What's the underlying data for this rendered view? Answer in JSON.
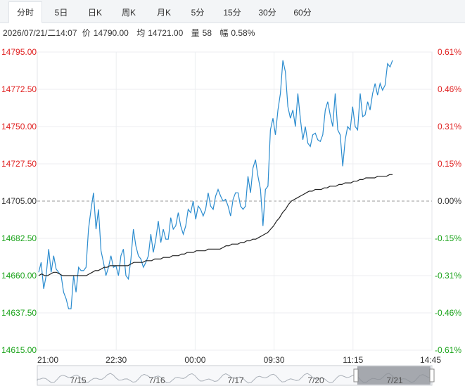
{
  "tabs": [
    {
      "label": "分时",
      "active": true
    },
    {
      "label": "5日",
      "active": false
    },
    {
      "label": "日K",
      "active": false
    },
    {
      "label": "周K",
      "active": false
    },
    {
      "label": "月K",
      "active": false
    },
    {
      "label": "5分",
      "active": false
    },
    {
      "label": "15分",
      "active": false
    },
    {
      "label": "30分",
      "active": false
    },
    {
      "label": "60分",
      "active": false
    }
  ],
  "info": {
    "datetime": "2026/07/21/二14:07",
    "price_label": "价",
    "price": "14790.00",
    "avg_label": "均",
    "avg": "14721.00",
    "vol_label": "量",
    "vol": "58",
    "chg_label": "幅",
    "chg": "0.58%"
  },
  "colors": {
    "up": "#e02020",
    "down": "#1aa31a",
    "neutral": "#333333",
    "price_line": "#2b8ccf",
    "avg_line": "#222222"
  },
  "chart_data": {
    "type": "line",
    "prev_close": 14705.0,
    "ylim": [
      14615,
      14795
    ],
    "y_ticks_left": [
      "14795.00",
      "14772.50",
      "14750.00",
      "14727.50",
      "14705.00",
      "14682.50",
      "14660.00",
      "14637.50",
      "14615.00"
    ],
    "y_ticks_right": [
      "0.61%",
      "0.46%",
      "0.31%",
      "0.15%",
      "0.00%",
      "-0.15%",
      "-0.31%",
      "-0.46%",
      "-0.61%"
    ],
    "x_ticks": [
      "21:00",
      "22:30",
      "00:00",
      "09:30",
      "11:15",
      "14:45"
    ],
    "navigator_dates": [
      "7/15",
      "7/16",
      "7/17",
      "7/20",
      "7/21"
    ],
    "series": [
      {
        "values": [
          14662,
          14668,
          14652,
          14660,
          14676,
          14662,
          14672,
          14664,
          14662,
          14660,
          14650,
          14646,
          14640,
          14640,
          14660,
          14650,
          14665,
          14663,
          14663,
          14665,
          14688,
          14700,
          14710,
          14688,
          14700,
          14675,
          14668,
          14660,
          14665,
          14672,
          14665,
          14666,
          14660,
          14672,
          14676,
          14660,
          14658,
          14670,
          14688,
          14678,
          14672,
          14670,
          14665,
          14668,
          14672,
          14685,
          14674,
          14682,
          14693,
          14680,
          14688,
          14682,
          14682,
          14695,
          14688,
          14690,
          14698,
          14690,
          14685,
          14690,
          14700,
          14698,
          14705,
          14694,
          14702,
          14700,
          14696,
          14700,
          14710,
          14702,
          14700,
          14708,
          14712,
          14708,
          14705,
          14706,
          14702,
          14696,
          14706,
          14710,
          14710,
          14702,
          14700,
          14702,
          14720,
          14710,
          14725,
          14730,
          14720,
          14712,
          14690,
          14712,
          14714,
          14748,
          14755,
          14745,
          14760,
          14770,
          14790,
          14783,
          14762,
          14755,
          14760,
          14750,
          14770,
          14755,
          14742,
          14750,
          14740,
          14738,
          14745,
          14746,
          14742,
          14741,
          14745,
          14760,
          14765,
          14757,
          14750,
          14770,
          14748,
          14745,
          14726,
          14742,
          14750,
          14748,
          14762,
          14750,
          14748,
          14770,
          14756,
          14757,
          14765,
          14760,
          14770,
          14776,
          14769,
          14776,
          14772,
          14775,
          14788,
          14786,
          14790
        ],
        "alt_times": []
      },
      {
        "values": [
          14660,
          14661,
          14660,
          14660,
          14661,
          14662,
          14662,
          14661,
          14660,
          14660,
          14660,
          14660,
          14660,
          14660,
          14660,
          14660,
          14660,
          14661,
          14662,
          14663,
          14663,
          14664,
          14665,
          14665,
          14666,
          14666,
          14666,
          14666,
          14666,
          14666,
          14666,
          14667,
          14668,
          14668,
          14668,
          14668,
          14669,
          14669,
          14669,
          14670,
          14670,
          14670,
          14671,
          14671,
          14671,
          14672,
          14672,
          14672,
          14673,
          14673,
          14674,
          14674,
          14674,
          14675,
          14675,
          14675,
          14675,
          14676,
          14676,
          14676,
          14676,
          14676,
          14677,
          14678,
          14678,
          14679,
          14679,
          14679,
          14680,
          14680,
          14681,
          14681,
          14682,
          14682,
          14683,
          14684,
          14685,
          14686,
          14688,
          14690,
          14693,
          14695,
          14698,
          14700,
          14703,
          14705,
          14706,
          14707,
          14708,
          14709,
          14710,
          14711,
          14711,
          14712,
          14712,
          14712,
          14713,
          14713,
          14714,
          14714,
          14714,
          14715,
          14715,
          14716,
          14716,
          14716,
          14717,
          14717,
          14718,
          14718,
          14719,
          14719,
          14719,
          14719,
          14720,
          14720,
          14720,
          14720,
          14721,
          14721
        ]
      }
    ]
  }
}
